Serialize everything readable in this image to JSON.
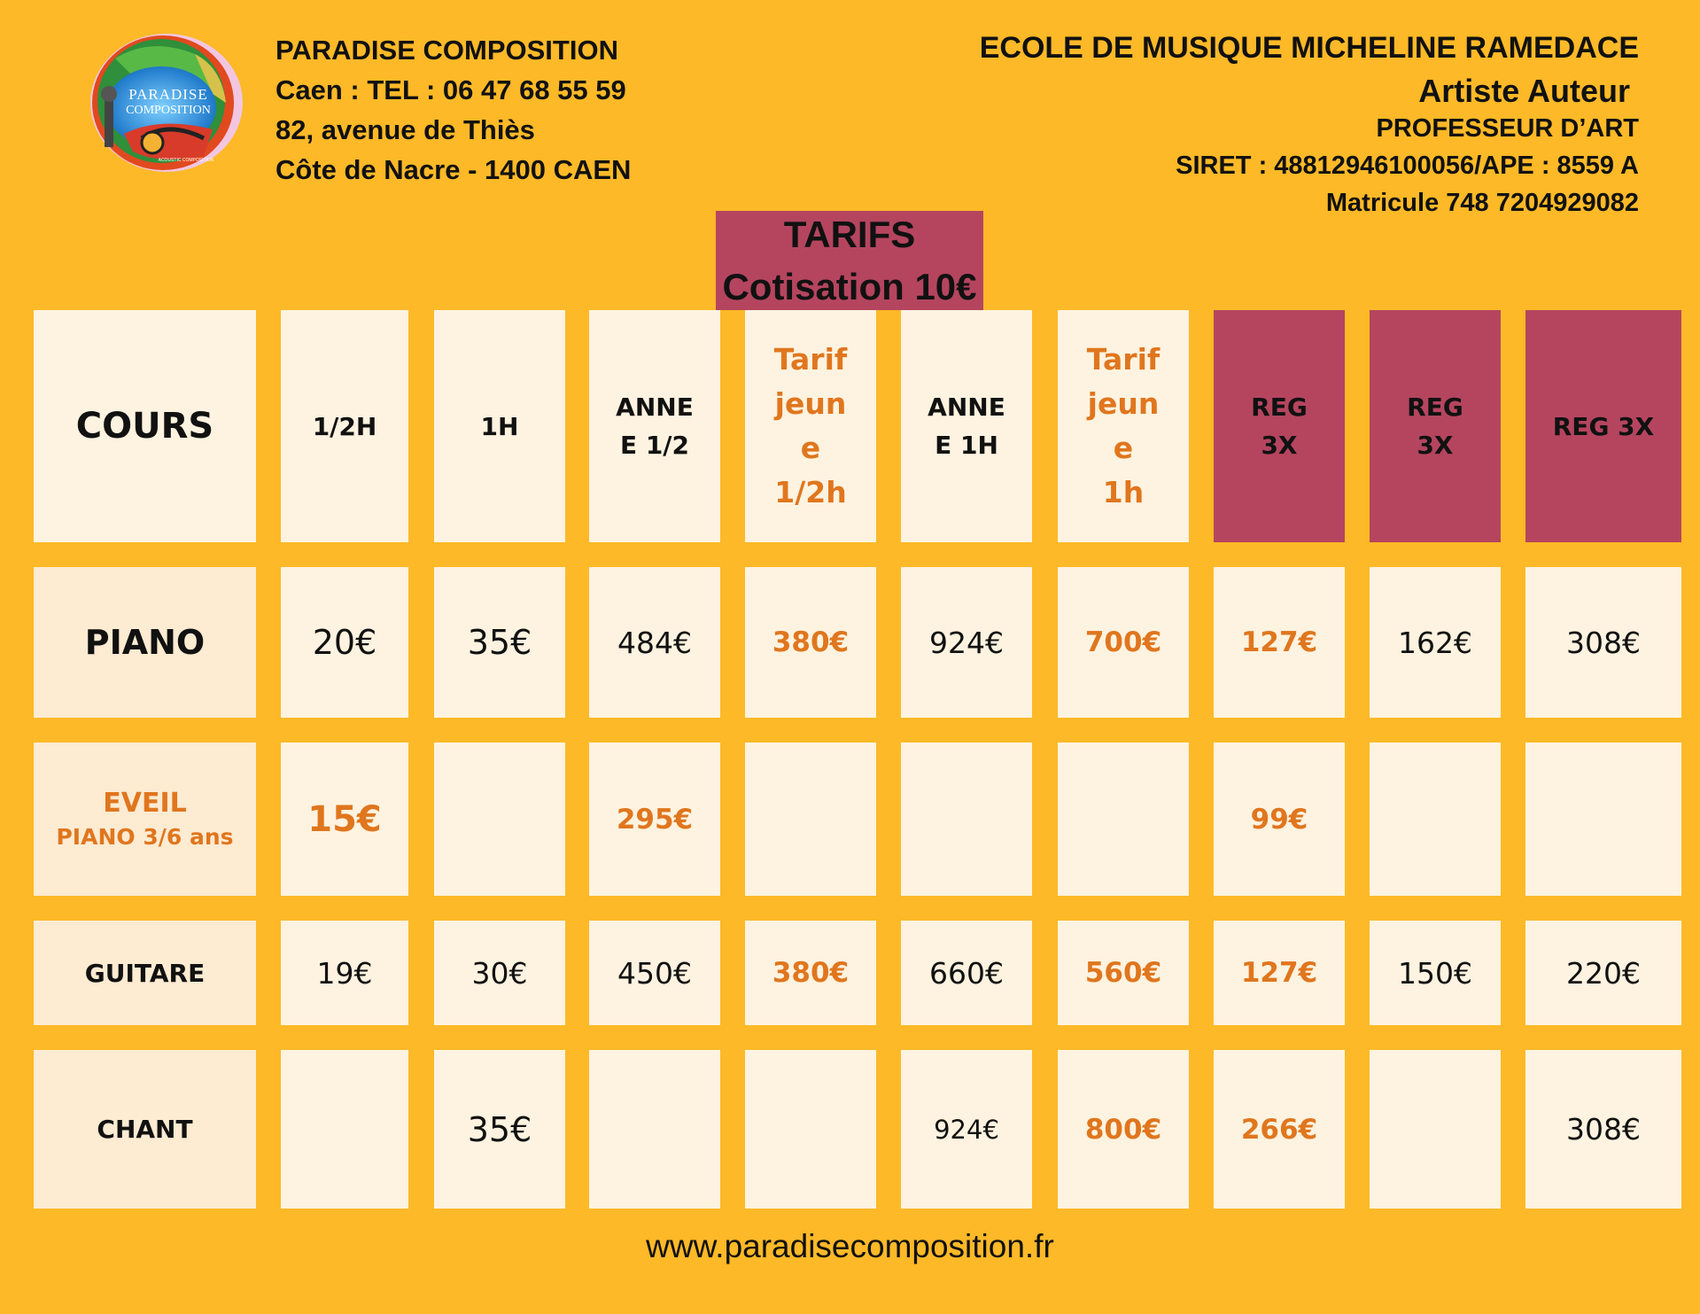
{
  "company": {
    "name": "PARADISE COMPOSITION",
    "phone_line": "Caen : TEL : 06 47 68 55 59",
    "address": "82, avenue de Thiès",
    "city_line": "Côte de Nacre - 1400 CAEN",
    "logo_text": [
      "PARADISE",
      "COMPOSITION",
      "ACOUSTIC COMPOSITION"
    ]
  },
  "school": {
    "name": "ECOLE DE MUSIQUE MICHELINE RAMEDACE",
    "artist": "Artiste Auteur",
    "title": "PROFESSEUR D’ART",
    "siret": "SIRET : 48812946100056/APE : 8559 A",
    "matricule": "Matricule 748 7204929082"
  },
  "tarifs": {
    "title": "TARIFS",
    "subtitle": "Cotisation 10€"
  },
  "table": {
    "headers": [
      {
        "text": "COURS"
      },
      {
        "text": "1/2H"
      },
      {
        "text": "1H"
      },
      {
        "lines": [
          "ANNE",
          "E 1/2"
        ]
      },
      {
        "lines": [
          "Tarif",
          "jeun",
          "e",
          "1/2h"
        ]
      },
      {
        "lines": [
          "ANNE",
          "E 1H"
        ]
      },
      {
        "lines": [
          "Tarif",
          "jeun",
          "e",
          "1h"
        ]
      },
      {
        "lines": [
          "REG",
          "3X"
        ]
      },
      {
        "lines": [
          "REG",
          "3X"
        ]
      },
      {
        "text": "REG 3X"
      }
    ],
    "rows": [
      {
        "label": "PIANO",
        "cells": [
          "20€",
          "35€",
          "484€",
          "380€",
          "924€",
          "700€",
          "127€",
          "162€",
          "308€"
        ]
      },
      {
        "label": "EVEIL",
        "label2": "PIANO 3/6 ans",
        "cells": [
          "15€",
          "",
          "295€",
          "",
          "",
          "",
          "99€",
          "",
          ""
        ]
      },
      {
        "label": "GUITARE",
        "cells": [
          "19€",
          "30€",
          "450€",
          "380€",
          "660€",
          "560€",
          "127€",
          "150€",
          "220€"
        ]
      },
      {
        "label": "CHANT",
        "cells": [
          "",
          "35€",
          "",
          "",
          "924€",
          "800€",
          "266€",
          "",
          "308€"
        ]
      }
    ]
  },
  "footer": {
    "website": "www.paradisecomposition.fr"
  },
  "colors": {
    "background": "#FDB927",
    "cell": "#FEF3E0",
    "accent": "#B5455F",
    "highlight_text": "#E0761E"
  }
}
